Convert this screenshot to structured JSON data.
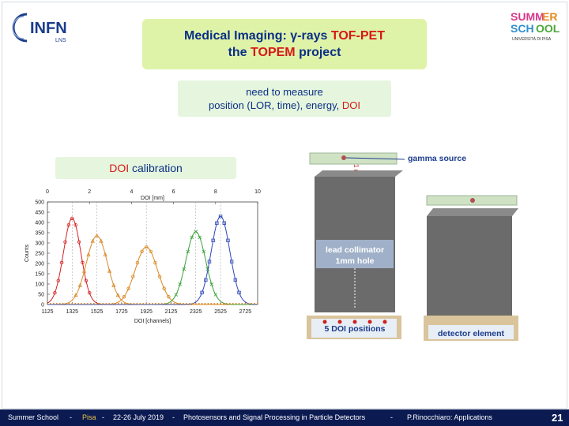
{
  "logos": {
    "infn_text": "INFN",
    "infn_sub": "LNS",
    "school_text": "SUMMER SCHOOL",
    "school_sub": "UNIVERSITÀ DI PISA"
  },
  "title": {
    "line1_pre": "Medical Imaging: γ-rays ",
    "line1_red": "TOF-PET",
    "line2_pre": "the ",
    "line2_red": "TOPEM",
    "line2_post": " project"
  },
  "need": {
    "line1": "need to measure",
    "line2_pre": "position (LOR, time), energy, ",
    "line2_red": "DOI"
  },
  "doi_calibration": {
    "red": "DOI",
    "rest": " calibration"
  },
  "chart_data": {
    "type": "scatter",
    "xlabel": "DOI [channels]",
    "x2label": "DOI [mm]",
    "ylabel": "Counts",
    "xlim": [
      1125,
      2825
    ],
    "ylim": [
      0,
      500
    ],
    "x_ticks": [
      "1125",
      "1325",
      "1525",
      "1725",
      "1925",
      "2125",
      "2325",
      "2525",
      "2725"
    ],
    "x2_ticks": [
      "0",
      "2",
      "4",
      "6",
      "8",
      "10"
    ],
    "y_ticks": [
      "0",
      "50",
      "100",
      "150",
      "200",
      "250",
      "300",
      "350",
      "400",
      "450",
      "500"
    ],
    "grid": false,
    "series": [
      {
        "peak_x": 1325,
        "peak_y": 420,
        "sigma": 70,
        "color": "#d62020",
        "marker": "circle"
      },
      {
        "peak_x": 1525,
        "peak_y": 335,
        "sigma": 85,
        "color": "#d98a2a",
        "marker": "triangle"
      },
      {
        "peak_x": 1925,
        "peak_y": 280,
        "sigma": 90,
        "color": "#d9861c",
        "marker": "circle"
      },
      {
        "peak_x": 2325,
        "peak_y": 355,
        "sigma": 80,
        "color": "#3aa23a",
        "marker": "cross"
      },
      {
        "peak_x": 2525,
        "peak_y": 430,
        "sigma": 75,
        "color": "#2f47b8",
        "marker": "square"
      }
    ]
  },
  "setup": {
    "gamma_source": "gamma source",
    "collimator_line1": "lead collimator",
    "collimator_line2": "1mm hole",
    "positions": "5 DOI positions",
    "detector": "detector element",
    "side_label": "1 mm"
  },
  "footer": {
    "school": "Summer School",
    "sep1": "-",
    "city": "Pisa",
    "sep2": "-",
    "dates": "22-26 July 2019",
    "sep3": "-",
    "topic": "Photosensors and Signal Processing in Particle Detectors",
    "sep4": "-",
    "author": "P.Rinocchiaro: Applications",
    "page": "21"
  },
  "colors": {
    "title_bg": "#dff3a8",
    "text_blue": "#0a2f86",
    "accent_red": "#d51818",
    "footer_bg": "#0c1a52"
  }
}
